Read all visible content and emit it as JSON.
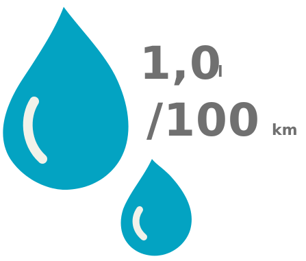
{
  "consumption": {
    "value": "1,0",
    "value_unit": "l",
    "per": "/100",
    "per_unit": "km"
  },
  "colors": {
    "drop": "#03a3c2",
    "highlight": "#f2f2ea",
    "text": "#707070",
    "background": "#ffffff"
  },
  "icons": [
    "large-water-drop-icon",
    "small-water-drop-icon"
  ]
}
